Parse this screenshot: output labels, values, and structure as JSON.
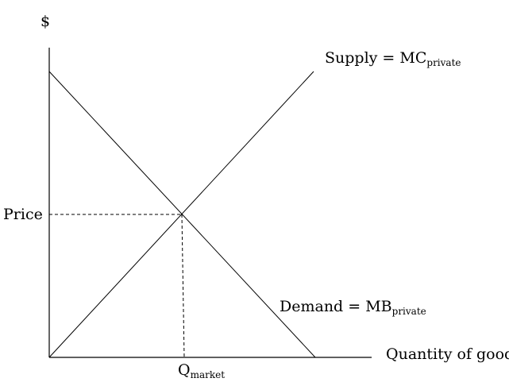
{
  "axes": {
    "y_label": "$",
    "x_label": "Quantity of good"
  },
  "curves": {
    "supply": {
      "label": "Supply = MC",
      "subscript": "private"
    },
    "demand": {
      "label": "Demand = MB",
      "subscript": "private"
    }
  },
  "equilibrium": {
    "price_label": "Price",
    "quantity_label": "Q",
    "quantity_subscript": "market"
  },
  "colors": {
    "line": "#000000",
    "background": "#ffffff"
  }
}
